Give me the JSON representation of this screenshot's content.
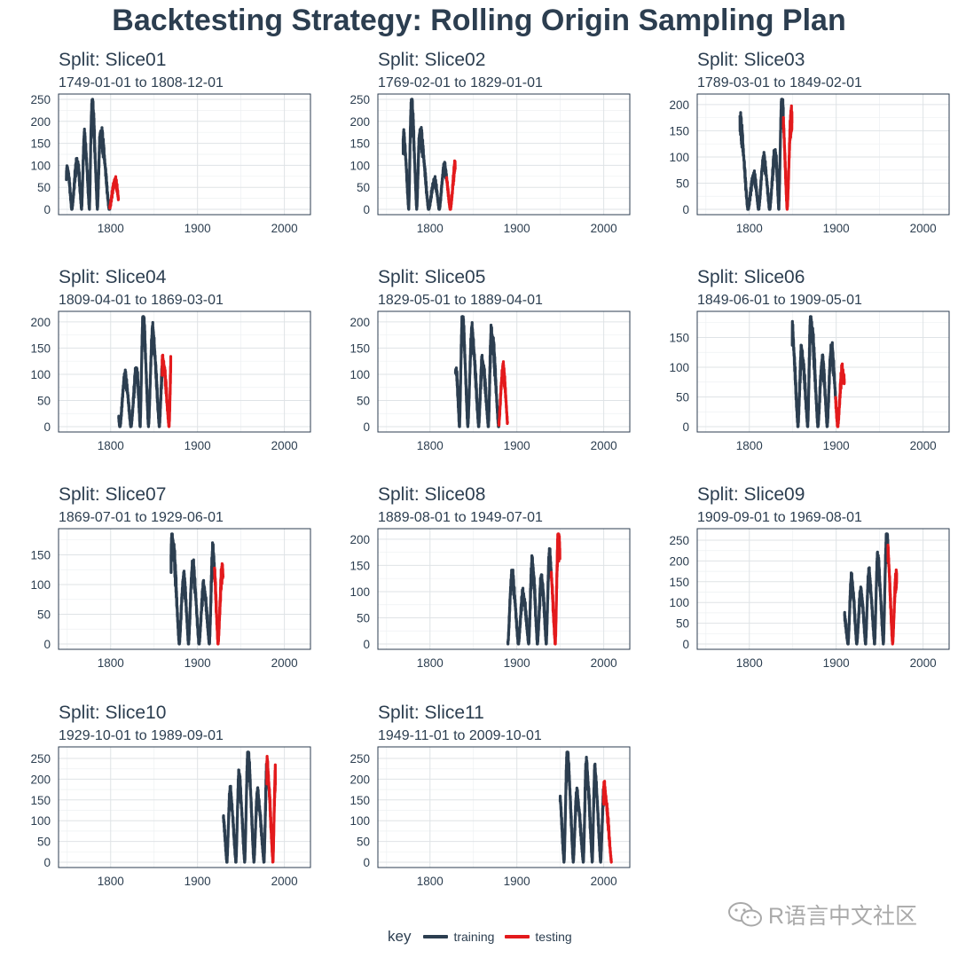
{
  "title": "Backtesting Strategy: Rolling Origin Sampling Plan",
  "legend": {
    "title": "key",
    "entries": [
      {
        "label": "training",
        "color": "#2c3e50"
      },
      {
        "label": "testing",
        "color": "#e31a1c"
      }
    ]
  },
  "watermark": "R语言中文社区",
  "chart_data": [
    {
      "type": "line",
      "title": "Split: Slice01",
      "subtitle": "1749-01-01 to 1808-12-01",
      "train": [
        1749,
        1798.99
      ],
      "test": [
        1799,
        1808.99
      ],
      "ylim": [
        0,
        250
      ],
      "yticks": [
        0,
        50,
        100,
        150,
        200,
        250
      ],
      "xticks": [
        1800,
        1900,
        2000
      ],
      "xlim": [
        1740,
        2030
      ]
    },
    {
      "type": "line",
      "title": "Split: Slice02",
      "subtitle": "1769-02-01 to 1829-01-01",
      "train": [
        1769.08,
        1819.07
      ],
      "test": [
        1819.08,
        1829.07
      ],
      "ylim": [
        0,
        250
      ],
      "yticks": [
        0,
        50,
        100,
        150,
        200,
        250
      ],
      "xticks": [
        1800,
        1900,
        2000
      ],
      "xlim": [
        1740,
        2030
      ]
    },
    {
      "type": "line",
      "title": "Split: Slice03",
      "subtitle": "1789-03-01 to 1849-02-01",
      "train": [
        1789.17,
        1839.15
      ],
      "test": [
        1839.16,
        1849.15
      ],
      "ylim": [
        0,
        210
      ],
      "yticks": [
        0,
        50,
        100,
        150,
        200
      ],
      "xticks": [
        1800,
        1900,
        2000
      ],
      "xlim": [
        1740,
        2030
      ]
    },
    {
      "type": "line",
      "title": "Split: Slice04",
      "subtitle": "1809-04-01 to 1869-03-01",
      "train": [
        1809.25,
        1859.24
      ],
      "test": [
        1859.25,
        1869.24
      ],
      "ylim": [
        0,
        210
      ],
      "yticks": [
        0,
        50,
        100,
        150,
        200
      ],
      "xticks": [
        1800,
        1900,
        2000
      ],
      "xlim": [
        1740,
        2030
      ]
    },
    {
      "type": "line",
      "title": "Split: Slice05",
      "subtitle": "1829-05-01 to 1889-04-01",
      "train": [
        1829.33,
        1879.32
      ],
      "test": [
        1879.33,
        1889.32
      ],
      "ylim": [
        0,
        210
      ],
      "yticks": [
        0,
        50,
        100,
        150,
        200
      ],
      "xticks": [
        1800,
        1900,
        2000
      ],
      "xlim": [
        1740,
        2030
      ]
    },
    {
      "type": "line",
      "title": "Split: Slice06",
      "subtitle": "1849-06-01 to 1909-05-01",
      "train": [
        1849.42,
        1899.4
      ],
      "test": [
        1899.41,
        1909.4
      ],
      "ylim": [
        0,
        185
      ],
      "yticks": [
        0,
        50,
        100,
        150
      ],
      "xticks": [
        1800,
        1900,
        2000
      ],
      "xlim": [
        1740,
        2030
      ]
    },
    {
      "type": "line",
      "title": "Split: Slice07",
      "subtitle": "1869-07-01 to 1929-06-01",
      "train": [
        1869.5,
        1919.49
      ],
      "test": [
        1919.5,
        1929.49
      ],
      "ylim": [
        0,
        185
      ],
      "yticks": [
        0,
        50,
        100,
        150
      ],
      "xticks": [
        1800,
        1900,
        2000
      ],
      "xlim": [
        1740,
        2030
      ]
    },
    {
      "type": "line",
      "title": "Split: Slice08",
      "subtitle": "1889-08-01 to 1949-07-01",
      "train": [
        1889.58,
        1939.57
      ],
      "test": [
        1939.58,
        1949.57
      ],
      "ylim": [
        0,
        210
      ],
      "yticks": [
        0,
        50,
        100,
        150,
        200
      ],
      "xticks": [
        1800,
        1900,
        2000
      ],
      "xlim": [
        1740,
        2030
      ]
    },
    {
      "type": "line",
      "title": "Split: Slice09",
      "subtitle": "1909-09-01 to 1969-08-01",
      "train": [
        1909.67,
        1959.65
      ],
      "test": [
        1959.66,
        1969.65
      ],
      "ylim": [
        0,
        265
      ],
      "yticks": [
        0,
        50,
        100,
        150,
        200,
        250
      ],
      "xticks": [
        1800,
        1900,
        2000
      ],
      "xlim": [
        1740,
        2030
      ]
    },
    {
      "type": "line",
      "title": "Split: Slice10",
      "subtitle": "1929-10-01 to 1989-09-01",
      "train": [
        1929.75,
        1979.74
      ],
      "test": [
        1979.75,
        1989.74
      ],
      "ylim": [
        0,
        265
      ],
      "yticks": [
        0,
        50,
        100,
        150,
        200,
        250
      ],
      "xticks": [
        1800,
        1900,
        2000
      ],
      "xlim": [
        1740,
        2030
      ]
    },
    {
      "type": "line",
      "title": "Split: Slice11",
      "subtitle": "1949-11-01 to 2009-10-01",
      "train": [
        1949.83,
        1999.82
      ],
      "test": [
        1999.83,
        2009.82
      ],
      "ylim": [
        0,
        265
      ],
      "yticks": [
        0,
        50,
        100,
        150,
        200,
        250
      ],
      "xticks": [
        1800,
        1900,
        2000
      ],
      "xlim": [
        1740,
        2030
      ]
    }
  ],
  "cycle_peaks": [
    [
      1750.3,
      90
    ],
    [
      1761.5,
      110
    ],
    [
      1769.7,
      160
    ],
    [
      1778.4,
      240
    ],
    [
      1788.1,
      175
    ],
    [
      1805.2,
      65
    ],
    [
      1816.4,
      95
    ],
    [
      1829.9,
      110
    ],
    [
      1837.2,
      205
    ],
    [
      1848.1,
      175
    ],
    [
      1860.1,
      125
    ],
    [
      1870.6,
      180
    ],
    [
      1883.9,
      110
    ],
    [
      1894.1,
      130
    ],
    [
      1907.0,
      95
    ],
    [
      1917.6,
      155
    ],
    [
      1928.4,
      125
    ],
    [
      1937.4,
      165
    ],
    [
      1947.5,
      200
    ],
    [
      1957.9,
      255
    ],
    [
      1968.9,
      160
    ],
    [
      1979.9,
      230
    ],
    [
      1989.6,
      210
    ],
    [
      2000.3,
      175
    ]
  ],
  "cycle_minima": [
    1745.0,
    1755.2,
    1766.5,
    1775.5,
    1784.7,
    1798.3,
    1810.6,
    1823.3,
    1833.9,
    1843.5,
    1856.0,
    1867.2,
    1878.9,
    1889.6,
    1901.7,
    1913.6,
    1923.6,
    1933.8,
    1944.2,
    1954.3,
    1964.9,
    1976.5,
    1986.8,
    1996.4,
    2008.9
  ]
}
